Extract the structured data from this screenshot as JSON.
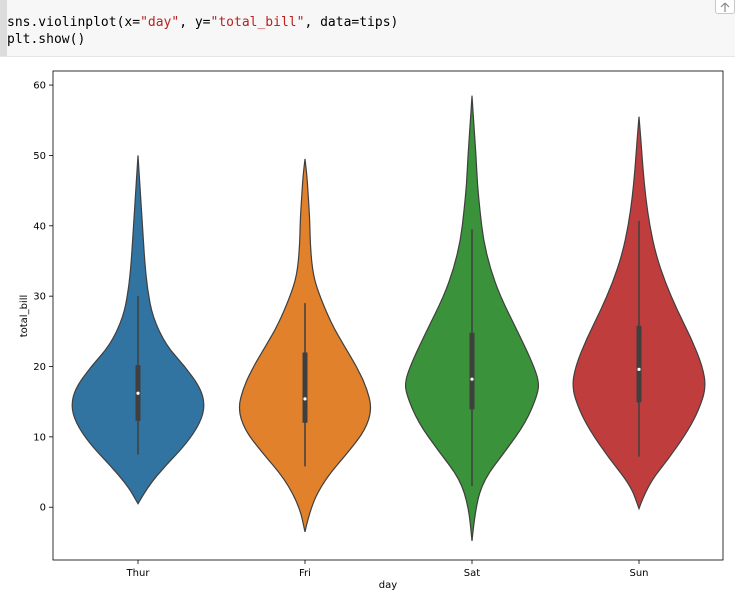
{
  "code": {
    "line1": {
      "prefix": "sns.violinplot(x=",
      "arg1": "\"day\"",
      "mid": ", y=",
      "arg2": "\"total_bill\"",
      "suffix": ", data=tips)"
    },
    "line2": "plt.show()"
  },
  "scroll_button_icon": "arrow-up-icon",
  "chart_data": {
    "type": "violin",
    "title": "",
    "xlabel": "day",
    "ylabel": "total_bill",
    "ylim": [
      -7.5,
      62.0
    ],
    "yticks": [
      0,
      10,
      20,
      30,
      40,
      50,
      60
    ],
    "grid": false,
    "categories": [
      "Thur",
      "Fri",
      "Sat",
      "Sun"
    ],
    "colors": [
      "#3274a1",
      "#e1812c",
      "#3a923a",
      "#c03d3e"
    ],
    "series": [
      {
        "category": "Thur",
        "min": 0.5,
        "max": 50.0,
        "whisker_low": 7.5,
        "whisker_high": 30.0,
        "q1": 12.3,
        "median": 16.2,
        "q3": 20.2,
        "density": [
          [
            0.5,
            0.0
          ],
          [
            3,
            0.15
          ],
          [
            6,
            0.42
          ],
          [
            9,
            0.72
          ],
          [
            12,
            0.93
          ],
          [
            14.5,
            1.0
          ],
          [
            17,
            0.93
          ],
          [
            20,
            0.7
          ],
          [
            23,
            0.42
          ],
          [
            27,
            0.22
          ],
          [
            31,
            0.14
          ],
          [
            35,
            0.1
          ],
          [
            38,
            0.08
          ],
          [
            41,
            0.06
          ],
          [
            44,
            0.04
          ],
          [
            47,
            0.02
          ],
          [
            50,
            0.0
          ]
        ]
      },
      {
        "category": "Fri",
        "min": -3.5,
        "max": 49.5,
        "whisker_low": 5.8,
        "whisker_high": 29.0,
        "q1": 12.0,
        "median": 15.4,
        "q3": 22.0,
        "density": [
          [
            -3.5,
            0.0
          ],
          [
            0,
            0.08
          ],
          [
            4,
            0.3
          ],
          [
            8,
            0.66
          ],
          [
            11,
            0.9
          ],
          [
            14,
            1.0
          ],
          [
            17,
            0.92
          ],
          [
            20,
            0.77
          ],
          [
            23,
            0.58
          ],
          [
            26,
            0.4
          ],
          [
            30,
            0.22
          ],
          [
            33,
            0.12
          ],
          [
            37,
            0.08
          ],
          [
            41,
            0.07
          ],
          [
            44,
            0.05
          ],
          [
            47,
            0.03
          ],
          [
            49.5,
            0.0
          ]
        ]
      },
      {
        "category": "Sat",
        "min": -4.8,
        "max": 58.5,
        "whisker_low": 3.0,
        "whisker_high": 39.5,
        "q1": 13.9,
        "median": 18.2,
        "q3": 24.8,
        "density": [
          [
            -4.8,
            0.0
          ],
          [
            0,
            0.05
          ],
          [
            4,
            0.18
          ],
          [
            8,
            0.5
          ],
          [
            12,
            0.8
          ],
          [
            16,
            0.98
          ],
          [
            18,
            1.0
          ],
          [
            21,
            0.88
          ],
          [
            25,
            0.68
          ],
          [
            30,
            0.42
          ],
          [
            34,
            0.27
          ],
          [
            38,
            0.17
          ],
          [
            42,
            0.12
          ],
          [
            46,
            0.08
          ],
          [
            50,
            0.06
          ],
          [
            54,
            0.03
          ],
          [
            58.5,
            0.0
          ]
        ]
      },
      {
        "category": "Sun",
        "min": -0.2,
        "max": 55.5,
        "whisker_low": 7.2,
        "whisker_high": 40.7,
        "q1": 14.9,
        "median": 19.6,
        "q3": 25.8,
        "density": [
          [
            -0.2,
            0.0
          ],
          [
            3,
            0.12
          ],
          [
            7,
            0.45
          ],
          [
            11,
            0.74
          ],
          [
            14,
            0.9
          ],
          [
            17,
            1.0
          ],
          [
            20,
            0.95
          ],
          [
            24,
            0.78
          ],
          [
            28,
            0.57
          ],
          [
            32,
            0.39
          ],
          [
            36,
            0.25
          ],
          [
            40,
            0.16
          ],
          [
            44,
            0.1
          ],
          [
            48,
            0.06
          ],
          [
            52,
            0.03
          ],
          [
            55.5,
            0.0
          ]
        ]
      }
    ]
  }
}
